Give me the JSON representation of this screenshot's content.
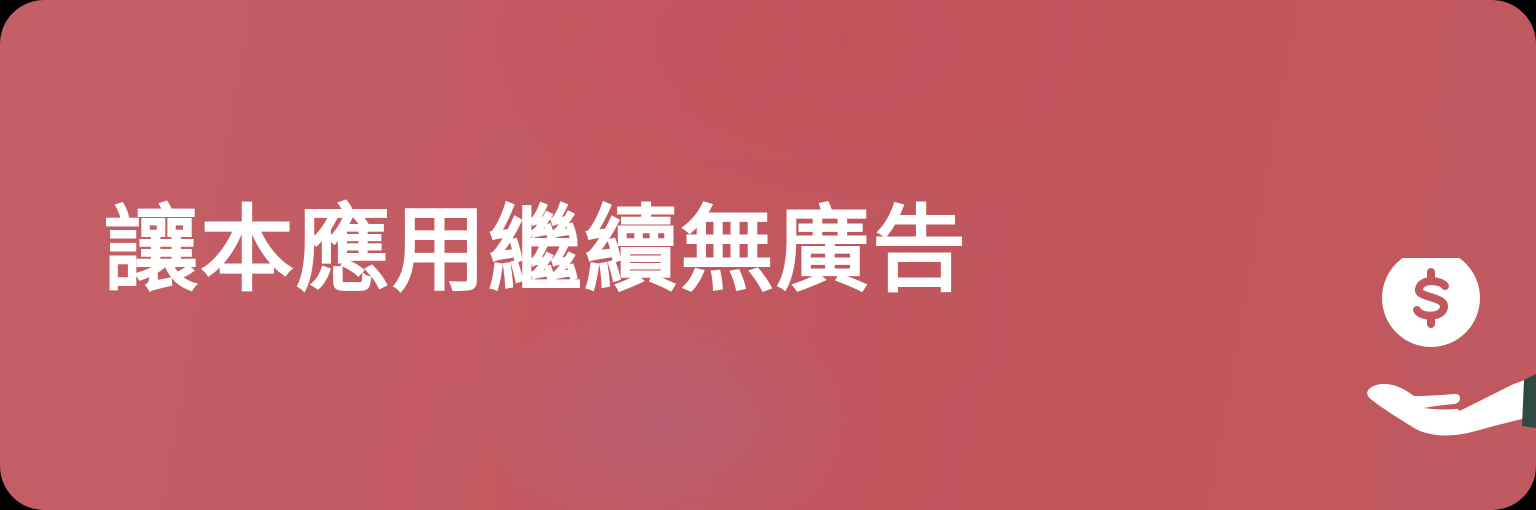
{
  "banner": {
    "title": "讓本應用繼續無廣告",
    "icon": "hand-holding-dollar-icon",
    "colors": {
      "background": "#c2585f",
      "text": "#ffffff",
      "icon_accent": "#2f4a3f"
    }
  }
}
